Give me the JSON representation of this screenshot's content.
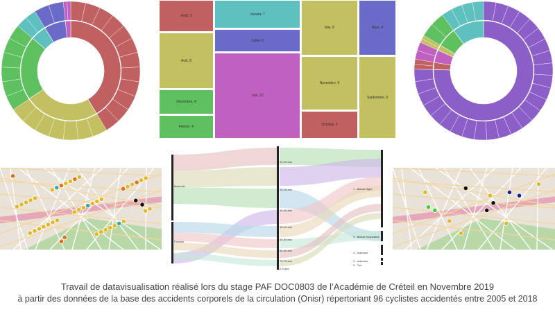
{
  "caption": {
    "line1": "Travail de datavisualisation réalisé lors du stage PAF DOC0803 de l’Académie de Créteil en Novembre 2019",
    "line2": "à partir des données de la base des accidents corporels de la circulation (Onisr) répertoriant 96 cyclistes accidentés entre 2005 et 2018"
  },
  "treemap": {
    "tiles": [
      {
        "label": "Août, 3",
        "color": "#c06060"
      },
      {
        "label": "Janvier, 7",
        "color": "#5fc0c0"
      },
      {
        "label": "Juillet, 6",
        "color": "#6a6ac8"
      },
      {
        "label": "Avril, 8",
        "color": "#c2c060"
      },
      {
        "label": "Décembre, 4",
        "color": "#5fc060"
      },
      {
        "label": "Février, 4",
        "color": "#5fc060"
      },
      {
        "label": "Juin, 22",
        "color": "#c060c0"
      },
      {
        "label": "Mai, 8",
        "color": "#c2c060"
      },
      {
        "label": "Mars, 4",
        "color": "#6a6ac8"
      },
      {
        "label": "Novembre, 9",
        "color": "#c2c060"
      },
      {
        "label": "Octobre, 5",
        "color": "#c06060"
      },
      {
        "label": "Septembre, 9",
        "color": "#c2c060"
      }
    ]
  },
  "sankey": {
    "left": [
      "Masculin",
      "Féminin"
    ],
    "middle": [
      "20-29 ans",
      "10-19 ans",
      "30-39 ans",
      "40-49 ans",
      "50-59 ans",
      "60-69 ans",
      "70-79 ans",
      "0-9 ans"
    ],
    "right": [
      "1 - Blessé léger",
      "3 - Blessé hospitalisé",
      "4 - Indemne",
      "2 - Indemne",
      "3 - Tué"
    ]
  },
  "colors": {
    "red": "#c06060",
    "yellow": "#c2c060",
    "green": "#5fc060",
    "teal": "#5fc0c0",
    "blue": "#6a6ac8",
    "purple": "#8c5fc8",
    "pink": "#c060c0"
  }
}
